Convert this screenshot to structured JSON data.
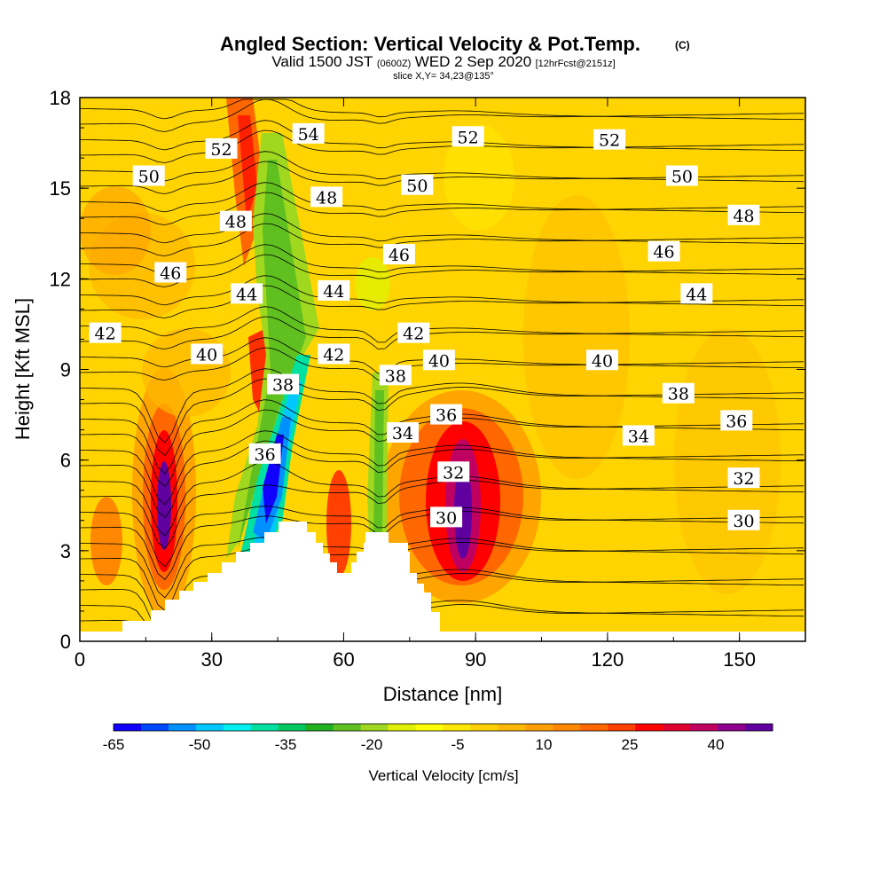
{
  "chart_data": {
    "type": "heatmap",
    "title": "Angled Section: Vertical Velocity & Pot.Temp.",
    "title_mark": "(C)",
    "subtitle_main": "Valid 1500 JST",
    "subtitle_utc": "(0600Z)",
    "subtitle_date": "WED 2 Sep 2020",
    "subtitle_fcst": "[12hrFcst@2151z]",
    "slice_text": "slice X,Y= 34,23@135°",
    "xlabel": "Distance [nm]",
    "ylabel": "Height [Kft MSL]",
    "xlim": [
      0,
      165
    ],
    "ylim": [
      0,
      18
    ],
    "x_ticks": [
      "0",
      "30",
      "60",
      "90",
      "120",
      "150"
    ],
    "y_ticks": [
      "0",
      "3",
      "6",
      "9",
      "12",
      "15",
      "18"
    ],
    "colorbar_label": "Vertical Velocity [cm/s]",
    "colorbar_ticks": [
      "-65",
      "-50",
      "-35",
      "-20",
      "-5",
      "10",
      "25",
      "40"
    ],
    "colorbar_colors": [
      "#1200ff",
      "#0048ff",
      "#0090ff",
      "#00c8ff",
      "#00f0f0",
      "#00e0a0",
      "#00c860",
      "#20b020",
      "#60c020",
      "#a0d820",
      "#e0f000",
      "#ffff00",
      "#ffe800",
      "#ffd000",
      "#ffb800",
      "#ffa000",
      "#ff8800",
      "#ff6800",
      "#ff4000",
      "#ff0000",
      "#e00030",
      "#c00060",
      "#900090",
      "#6000a0"
    ],
    "background_color": "#ffd400",
    "cores": [
      {
        "x": 20,
        "y": 5,
        "value": 48
      },
      {
        "x": 88,
        "y": 5,
        "value": 48
      },
      {
        "x": 45,
        "y": 6,
        "value": -62
      },
      {
        "x": 39,
        "y": 16.5,
        "value": 30
      },
      {
        "x": 68,
        "y": 7,
        "value": -20
      }
    ],
    "theta_labels": [
      {
        "text": "52",
        "x": 39,
        "y": 16.3
      },
      {
        "text": "54",
        "x": 63,
        "y": 16.8
      },
      {
        "text": "52",
        "x": 107,
        "y": 16.7
      },
      {
        "text": "52",
        "x": 146,
        "y": 16.6
      },
      {
        "text": "50",
        "x": 19,
        "y": 15.4
      },
      {
        "text": "48",
        "x": 68,
        "y": 14.7
      },
      {
        "text": "50",
        "x": 93,
        "y": 15.1
      },
      {
        "text": "50",
        "x": 166,
        "y": 15.4
      },
      {
        "text": "48",
        "x": 43,
        "y": 13.9
      },
      {
        "text": "48",
        "x": 183,
        "y": 14.1
      },
      {
        "text": "46",
        "x": 25,
        "y": 12.2
      },
      {
        "text": "46",
        "x": 88,
        "y": 12.8
      },
      {
        "text": "46",
        "x": 161,
        "y": 12.9
      },
      {
        "text": "44",
        "x": 46,
        "y": 11.5
      },
      {
        "text": "44",
        "x": 70,
        "y": 11.6
      },
      {
        "text": "44",
        "x": 170,
        "y": 11.5
      },
      {
        "text": "42",
        "x": 7,
        "y": 10.2
      },
      {
        "text": "42",
        "x": 70,
        "y": 9.5
      },
      {
        "text": "42",
        "x": 92,
        "y": 10.2
      },
      {
        "text": "40",
        "x": 35,
        "y": 9.5
      },
      {
        "text": "40",
        "x": 99,
        "y": 9.3
      },
      {
        "text": "40",
        "x": 144,
        "y": 9.3
      },
      {
        "text": "38",
        "x": 56,
        "y": 8.5
      },
      {
        "text": "38",
        "x": 87,
        "y": 8.8
      },
      {
        "text": "38",
        "x": 165,
        "y": 8.2
      },
      {
        "text": "36",
        "x": 51,
        "y": 6.2
      },
      {
        "text": "36",
        "x": 101,
        "y": 7.5
      },
      {
        "text": "36",
        "x": 181,
        "y": 7.3
      },
      {
        "text": "34",
        "x": 89,
        "y": 6.9
      },
      {
        "text": "34",
        "x": 154,
        "y": 6.8
      },
      {
        "text": "32",
        "x": 103,
        "y": 5.6
      },
      {
        "text": "32",
        "x": 183,
        "y": 5.4
      },
      {
        "text": "30",
        "x": 101,
        "y": 4.1
      },
      {
        "text": "30",
        "x": 183,
        "y": 4.0
      }
    ]
  }
}
